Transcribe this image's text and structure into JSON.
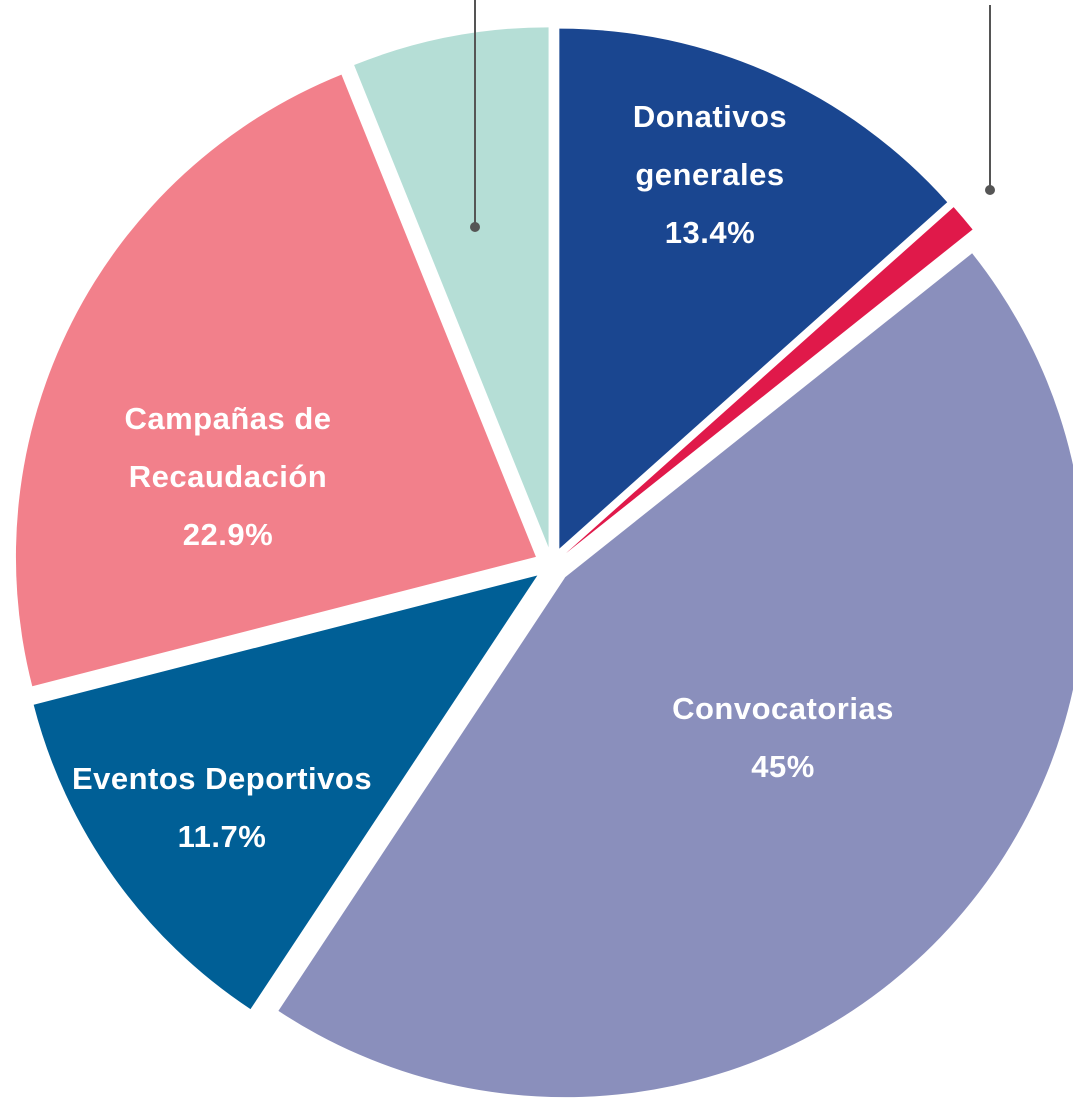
{
  "chart_data": {
    "type": "pie",
    "categories": [
      "Donativos generales",
      null,
      "Convocatorias",
      "Eventos Deportivos",
      "Campañas de Recaudación",
      null
    ],
    "values": [
      13.4,
      0.9,
      45,
      11.7,
      22.9,
      6.1
    ],
    "value_labels": [
      "13.4%",
      null,
      "45%",
      "11.7%",
      "22.9%",
      null
    ],
    "colors": [
      "#1a4690",
      "#e0194a",
      "#8a8fbc",
      "#005f96",
      "#f2808b",
      "#b5ded6"
    ]
  }
}
